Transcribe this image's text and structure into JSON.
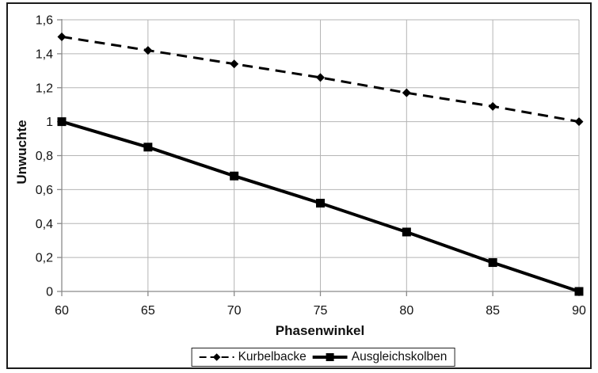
{
  "colors": {
    "background": "#ffffff",
    "frame": "#1b1b1b",
    "grid": "#b5b5b5",
    "axis": "#8a8a8a",
    "text": "#111111",
    "series": "#000000"
  },
  "chart_data": {
    "type": "line",
    "title": "",
    "xlabel": "Phasenwinkel",
    "ylabel": "Unwuchte",
    "xlim": [
      60,
      90
    ],
    "ylim": [
      0,
      1.6
    ],
    "grid": true,
    "legend_position": "bottom",
    "x": [
      60,
      65,
      70,
      75,
      80,
      85,
      90
    ],
    "x_tick_labels": [
      "60",
      "65",
      "70",
      "75",
      "80",
      "85",
      "90"
    ],
    "y_ticks": [
      0,
      0.2,
      0.4,
      0.6,
      0.8,
      1.0,
      1.2,
      1.4,
      1.6
    ],
    "y_tick_labels": [
      "0",
      "0,2",
      "0,4",
      "0,6",
      "0,8",
      "1",
      "1,2",
      "1,4",
      "1,6"
    ],
    "series": [
      {
        "name": "Kurbelbacke",
        "values": [
          1.5,
          1.42,
          1.34,
          1.26,
          1.17,
          1.09,
          1.0
        ],
        "marker": "diamond",
        "line_style": "dashed",
        "color": "#000000"
      },
      {
        "name": "Ausgleichskolben",
        "values": [
          1.0,
          0.85,
          0.68,
          0.52,
          0.35,
          0.17,
          0.0
        ],
        "marker": "square",
        "line_style": "solid",
        "color": "#000000"
      }
    ]
  }
}
